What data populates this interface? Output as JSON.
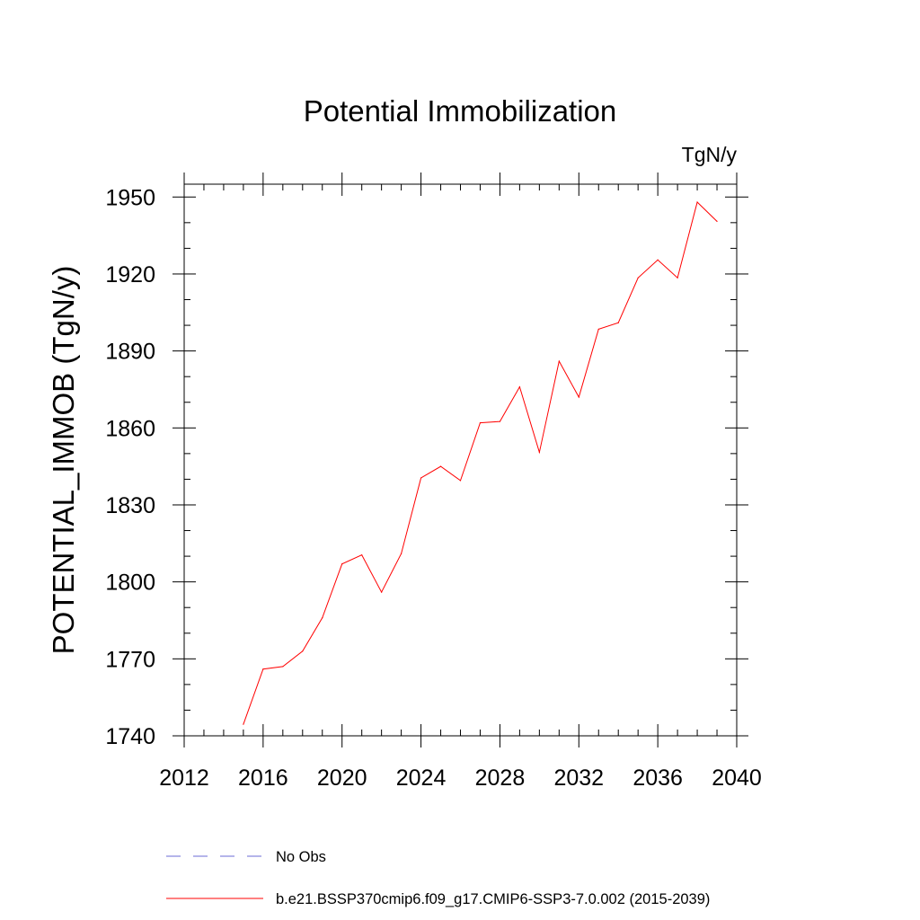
{
  "chart_data": {
    "type": "line",
    "title": "Potential Immobilization",
    "units_label": "TgN/y",
    "ylabel": "POTENTIAL_IMMOB  (TgN/y)",
    "xlabel": "",
    "xlim": [
      2012,
      2040
    ],
    "ylim": [
      1740,
      1955
    ],
    "xticks": [
      2012,
      2016,
      2020,
      2024,
      2028,
      2032,
      2036,
      2040
    ],
    "yticks": [
      1740,
      1770,
      1800,
      1830,
      1860,
      1890,
      1920,
      1950
    ],
    "x_minor_step": 1,
    "y_minor_step": 10,
    "grid": false,
    "legend_placement": "bottom",
    "series": [
      {
        "name": "b.e21.BSSP370cmip6.f09_g17.CMIP6-SSP3-7.0.002 (2015-2039)",
        "color": "#ff0000",
        "dash": false,
        "x": [
          2015,
          2016,
          2017,
          2018,
          2019,
          2020,
          2021,
          2022,
          2023,
          2024,
          2025,
          2026,
          2027,
          2028,
          2029,
          2030,
          2031,
          2032,
          2033,
          2034,
          2035,
          2036,
          2037,
          2038,
          2039
        ],
        "values": [
          1744.5,
          1766,
          1767,
          1773,
          1786,
          1807,
          1810.5,
          1796,
          1811,
          1840.5,
          1845,
          1839.5,
          1862,
          1862.5,
          1876,
          1850.5,
          1886,
          1872,
          1898.5,
          1901,
          1918.5,
          1925.5,
          1918.5,
          1948,
          1940.5
        ]
      }
    ],
    "legend": [
      {
        "label": "No Obs",
        "color": "#6b6bd6",
        "dash": true
      },
      {
        "label": "b.e21.BSSP370cmip6.f09_g17.CMIP6-SSP3-7.0.002 (2015-2039)",
        "color": "#ff0000",
        "dash": false
      }
    ]
  }
}
